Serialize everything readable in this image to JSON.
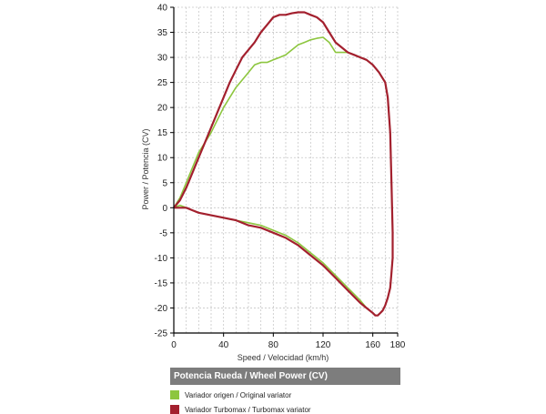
{
  "chart_data": {
    "type": "line",
    "title": "",
    "xlabel": "Speed / Velocidad (km/h)",
    "ylabel": "Power / Potencia (CV)",
    "xlim": [
      0,
      180
    ],
    "ylim": [
      -25,
      40
    ],
    "xticks": [
      "0",
      "40",
      "80",
      "120",
      "160",
      "180"
    ],
    "yticks": [
      "40",
      "35",
      "30",
      "25",
      "20",
      "15",
      "10",
      "5",
      "0",
      "-5",
      "-10",
      "-15",
      "-20",
      "-25"
    ],
    "grid": true,
    "legend_title": "Potencia Rueda / Wheel Power (CV)",
    "legend_placement": "bottom",
    "series": [
      {
        "name": "Variador origen / Original variator",
        "color": "#8dc63f",
        "x": [
          0,
          5,
          10,
          15,
          20,
          25,
          30,
          35,
          40,
          45,
          50,
          55,
          60,
          65,
          70,
          75,
          80,
          85,
          90,
          95,
          100,
          105,
          110,
          115,
          120,
          125,
          130,
          135,
          140,
          145,
          150,
          155,
          160,
          165,
          170,
          172,
          174,
          175,
          176,
          176,
          175,
          174,
          172,
          170,
          168,
          166,
          164,
          162,
          160,
          155,
          150,
          140,
          130,
          120,
          110,
          100,
          90,
          80,
          70,
          60,
          50,
          40,
          30,
          20,
          15,
          10,
          5,
          0
        ],
        "y": [
          0,
          2,
          5,
          8,
          11,
          13,
          15,
          17.5,
          20,
          22,
          24,
          25.5,
          27,
          28.5,
          29,
          29,
          29.5,
          30,
          30.5,
          31.5,
          32.5,
          33,
          33.5,
          33.8,
          34,
          33,
          31,
          31,
          31,
          30.5,
          30,
          29.5,
          28.5,
          27,
          25,
          22,
          15,
          5,
          -5,
          -10,
          -13,
          -16,
          -18,
          -19.5,
          -20.5,
          -21,
          -21.5,
          -21.5,
          -21,
          -20,
          -18.5,
          -16,
          -13.5,
          -11,
          -9,
          -7,
          -5.5,
          -4.5,
          -3.5,
          -3,
          -2.5,
          -2,
          -1.5,
          -1,
          -0.5,
          0,
          0.5,
          0
        ]
      },
      {
        "name": "Variador Turbomax  / Turbomax variator",
        "color": "#a3202e",
        "x": [
          0,
          5,
          10,
          15,
          20,
          25,
          30,
          35,
          40,
          45,
          50,
          55,
          60,
          65,
          70,
          75,
          80,
          85,
          90,
          95,
          100,
          105,
          110,
          115,
          120,
          125,
          130,
          135,
          140,
          145,
          150,
          155,
          160,
          165,
          170,
          172,
          174,
          175,
          176,
          176,
          175,
          174,
          172,
          170,
          168,
          166,
          164,
          162,
          160,
          155,
          150,
          140,
          130,
          120,
          110,
          100,
          90,
          80,
          70,
          60,
          50,
          40,
          30,
          20,
          15,
          10,
          5,
          0
        ],
        "y": [
          0,
          1.5,
          4,
          7,
          10,
          13,
          16,
          19,
          22,
          25,
          27.5,
          30,
          31.5,
          33,
          35,
          36.5,
          38,
          38.5,
          38.5,
          38.8,
          39,
          39,
          38.5,
          38,
          37,
          35,
          33,
          32,
          31,
          30.5,
          30,
          29.5,
          28.5,
          27,
          25,
          22,
          15,
          5,
          -5,
          -10,
          -13,
          -16,
          -18,
          -19.5,
          -20.5,
          -21,
          -21.5,
          -21.5,
          -21,
          -20,
          -19,
          -16.5,
          -14,
          -11.5,
          -9.5,
          -7.5,
          -6,
          -5,
          -4,
          -3.5,
          -2.5,
          -2,
          -1.5,
          -1,
          -0.5,
          0,
          0,
          0
        ]
      }
    ]
  }
}
